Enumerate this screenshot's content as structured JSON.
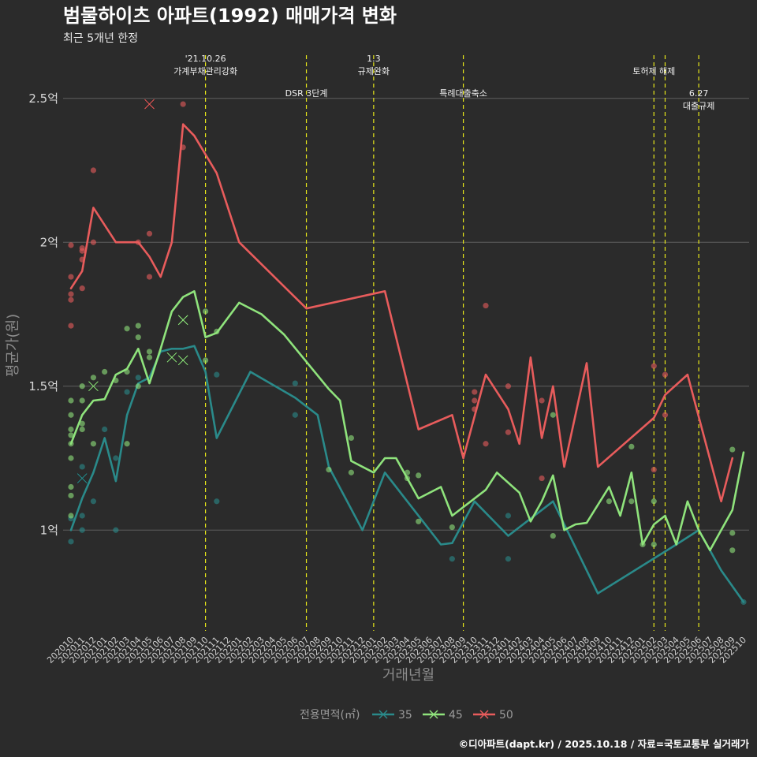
{
  "header": {
    "title": "범물하이츠 아파트(1992) 매매가격 변화",
    "subtitle": "최근 5개년 한정"
  },
  "caption": "©디아파트(dapt.kr) / 2025.10.18 / 자료=국토교통부 실거래가",
  "chart_data": {
    "type": "line",
    "title": "범물하이츠 아파트(1992) 매매가격 변화",
    "xlabel": "거래년월",
    "ylabel": "평균가(원)",
    "ylim": [
      0.65,
      2.65
    ],
    "yticks": [
      {
        "v": 1.0,
        "label": "1억"
      },
      {
        "v": 1.5,
        "label": "1.5억"
      },
      {
        "v": 2.0,
        "label": "2억"
      },
      {
        "v": 2.5,
        "label": "2.5억"
      }
    ],
    "grid": true,
    "x_categories": [
      "202010",
      "202011",
      "202012",
      "202101",
      "202102",
      "202103",
      "202104",
      "202105",
      "202106",
      "202107",
      "202108",
      "202109",
      "202110",
      "202111",
      "202112",
      "202201",
      "202202",
      "202203",
      "202204",
      "202205",
      "202206",
      "202207",
      "202208",
      "202209",
      "202210",
      "202211",
      "202212",
      "202301",
      "202302",
      "202303",
      "202304",
      "202305",
      "202306",
      "202307",
      "202308",
      "202309",
      "202310",
      "202311",
      "202312",
      "202401",
      "202402",
      "202403",
      "202404",
      "202405",
      "202406",
      "202407",
      "202408",
      "202409",
      "202410",
      "202411",
      "202412",
      "202501",
      "202502",
      "202503",
      "202504",
      "202505",
      "202506",
      "202507",
      "202508",
      "202509",
      "202510"
    ],
    "legend": {
      "title": "전용면적(㎡)",
      "position": "bottom"
    },
    "series": [
      {
        "name": "35",
        "color": "#2a8a8a",
        "line": [
          [
            "202010",
            1.0
          ],
          [
            "202011",
            1.11
          ],
          [
            "202012",
            1.2
          ],
          [
            "202101",
            1.32
          ],
          [
            "202102",
            1.17
          ],
          [
            "202103",
            1.4
          ],
          [
            "202104",
            1.51
          ],
          [
            "202105",
            1.53
          ],
          [
            "202106",
            1.62
          ],
          [
            "202107",
            1.63
          ],
          [
            "202108",
            1.63
          ],
          [
            "202109",
            1.64
          ],
          [
            "202110",
            1.55
          ],
          [
            "202111",
            1.32
          ],
          [
            "202202",
            1.55
          ],
          [
            "202206",
            1.46
          ],
          [
            "202208",
            1.4
          ],
          [
            "202209",
            1.22
          ],
          [
            "202212",
            1.0
          ],
          [
            "202302",
            1.2
          ],
          [
            "202307",
            0.95
          ],
          [
            "202308",
            0.955
          ],
          [
            "202310",
            1.1
          ],
          [
            "202401",
            0.98
          ],
          [
            "202405",
            1.1
          ],
          [
            "202409",
            0.78
          ],
          [
            "202504",
            0.95
          ],
          [
            "202506",
            1.0
          ],
          [
            "202508",
            0.86
          ],
          [
            "202510",
            0.75
          ]
        ],
        "points": [
          [
            "202010",
            0.96
          ],
          [
            "202010",
            1.04
          ],
          [
            "202011",
            1.0
          ],
          [
            "202011",
            1.05
          ],
          [
            "202011",
            1.22
          ],
          [
            "202012",
            1.1
          ],
          [
            "202101",
            1.35
          ],
          [
            "202102",
            1.0
          ],
          [
            "202102",
            1.25
          ],
          [
            "202103",
            1.48
          ],
          [
            "202104",
            1.53
          ],
          [
            "202111",
            1.1
          ],
          [
            "202111",
            1.54
          ],
          [
            "202206",
            1.51
          ],
          [
            "202206",
            1.4
          ],
          [
            "202308",
            0.9
          ],
          [
            "202401",
            0.9
          ],
          [
            "202401",
            1.05
          ],
          [
            "202510",
            0.75
          ]
        ],
        "crosses": [
          [
            "202011",
            1.18
          ]
        ]
      },
      {
        "name": "45",
        "color": "#8fe37c",
        "line": [
          [
            "202010",
            1.3
          ],
          [
            "202011",
            1.4
          ],
          [
            "202012",
            1.45
          ],
          [
            "202101",
            1.455
          ],
          [
            "202102",
            1.54
          ],
          [
            "202103",
            1.56
          ],
          [
            "202104",
            1.63
          ],
          [
            "202105",
            1.51
          ],
          [
            "202106",
            1.63
          ],
          [
            "202107",
            1.76
          ],
          [
            "202108",
            1.81
          ],
          [
            "202109",
            1.83
          ],
          [
            "202110",
            1.67
          ],
          [
            "202111",
            1.685
          ],
          [
            "202201",
            1.79
          ],
          [
            "202203",
            1.75
          ],
          [
            "202205",
            1.68
          ],
          [
            "202209",
            1.49
          ],
          [
            "202210",
            1.45
          ],
          [
            "202211",
            1.24
          ],
          [
            "202301",
            1.2
          ],
          [
            "202302",
            1.25
          ],
          [
            "202303",
            1.25
          ],
          [
            "202305",
            1.11
          ],
          [
            "202307",
            1.15
          ],
          [
            "202308",
            1.05
          ],
          [
            "202311",
            1.14
          ],
          [
            "202312",
            1.2
          ],
          [
            "202402",
            1.13
          ],
          [
            "202403",
            1.03
          ],
          [
            "202404",
            1.1
          ],
          [
            "202405",
            1.19
          ],
          [
            "202406",
            1.0
          ],
          [
            "202407",
            1.02
          ],
          [
            "202408",
            1.025
          ],
          [
            "202410",
            1.15
          ],
          [
            "202411",
            1.05
          ],
          [
            "202412",
            1.2
          ],
          [
            "202501",
            0.95
          ],
          [
            "202502",
            1.02
          ],
          [
            "202503",
            1.05
          ],
          [
            "202504",
            0.95
          ],
          [
            "202505",
            1.1
          ],
          [
            "202506",
            1.0
          ],
          [
            "202507",
            0.93
          ],
          [
            "202509",
            1.07
          ],
          [
            "202510",
            1.27
          ]
        ],
        "points": [
          [
            "202010",
            1.3
          ],
          [
            "202010",
            1.33
          ],
          [
            "202010",
            1.35
          ],
          [
            "202010",
            1.4
          ],
          [
            "202010",
            1.45
          ],
          [
            "202010",
            1.25
          ],
          [
            "202010",
            1.15
          ],
          [
            "202010",
            1.12
          ],
          [
            "202010",
            1.05
          ],
          [
            "202011",
            1.35
          ],
          [
            "202011",
            1.37
          ],
          [
            "202011",
            1.45
          ],
          [
            "202011",
            1.5
          ],
          [
            "202012",
            1.53
          ],
          [
            "202012",
            1.3
          ],
          [
            "202101",
            1.55
          ],
          [
            "202102",
            1.52
          ],
          [
            "202103",
            1.7
          ],
          [
            "202103",
            1.55
          ],
          [
            "202103",
            1.3
          ],
          [
            "202104",
            1.71
          ],
          [
            "202104",
            1.67
          ],
          [
            "202104",
            1.5
          ],
          [
            "202105",
            1.62
          ],
          [
            "202105",
            1.6
          ],
          [
            "202110",
            1.76
          ],
          [
            "202110",
            1.59
          ],
          [
            "202111",
            1.69
          ],
          [
            "202209",
            1.21
          ],
          [
            "202211",
            1.32
          ],
          [
            "202211",
            1.2
          ],
          [
            "202304",
            1.2
          ],
          [
            "202304",
            1.18
          ],
          [
            "202305",
            1.19
          ],
          [
            "202305",
            1.03
          ],
          [
            "202308",
            1.01
          ],
          [
            "202405",
            1.4
          ],
          [
            "202405",
            0.98
          ],
          [
            "202410",
            1.1
          ],
          [
            "202412",
            1.29
          ],
          [
            "202412",
            1.1
          ],
          [
            "202501",
            0.95
          ],
          [
            "202502",
            1.1
          ],
          [
            "202502",
            0.95
          ],
          [
            "202509",
            1.28
          ],
          [
            "202509",
            0.99
          ],
          [
            "202509",
            0.93
          ]
        ],
        "crosses": [
          [
            "202012",
            1.5
          ],
          [
            "202108",
            1.73
          ],
          [
            "202108",
            1.59
          ],
          [
            "202107",
            1.6
          ]
        ]
      },
      {
        "name": "50",
        "color": "#e85c5c",
        "line": [
          [
            "202010",
            1.84
          ],
          [
            "202011",
            1.9
          ],
          [
            "202012",
            2.12
          ],
          [
            "202102",
            2.0
          ],
          [
            "202104",
            2.0
          ],
          [
            "202105",
            1.95
          ],
          [
            "202106",
            1.88
          ],
          [
            "202107",
            2.0
          ],
          [
            "202108",
            2.41
          ],
          [
            "202109",
            2.37
          ],
          [
            "202111",
            2.24
          ],
          [
            "202201",
            2.0
          ],
          [
            "202207",
            1.77
          ],
          [
            "202302",
            1.83
          ],
          [
            "202305",
            1.35
          ],
          [
            "202308",
            1.4
          ],
          [
            "202309",
            1.25
          ],
          [
            "202311",
            1.54
          ],
          [
            "202401",
            1.42
          ],
          [
            "202402",
            1.3
          ],
          [
            "202403",
            1.6
          ],
          [
            "202404",
            1.32
          ],
          [
            "202405",
            1.5
          ],
          [
            "202406",
            1.22
          ],
          [
            "202408",
            1.58
          ],
          [
            "202409",
            1.22
          ],
          [
            "202502",
            1.39
          ],
          [
            "202503",
            1.47
          ],
          [
            "202505",
            1.54
          ],
          [
            "202508",
            1.1
          ],
          [
            "202509",
            1.25
          ]
        ],
        "points": [
          [
            "202010",
            1.99
          ],
          [
            "202010",
            1.88
          ],
          [
            "202010",
            1.82
          ],
          [
            "202010",
            1.8
          ],
          [
            "202010",
            1.71
          ],
          [
            "202011",
            1.98
          ],
          [
            "202011",
            1.97
          ],
          [
            "202011",
            1.94
          ],
          [
            "202011",
            1.84
          ],
          [
            "202012",
            2.25
          ],
          [
            "202012",
            2.0
          ],
          [
            "202104",
            2.0
          ],
          [
            "202105",
            2.03
          ],
          [
            "202105",
            1.88
          ],
          [
            "202108",
            2.48
          ],
          [
            "202108",
            2.33
          ],
          [
            "202310",
            1.48
          ],
          [
            "202310",
            1.45
          ],
          [
            "202310",
            1.42
          ],
          [
            "202311",
            1.78
          ],
          [
            "202311",
            1.3
          ],
          [
            "202401",
            1.5
          ],
          [
            "202401",
            1.34
          ],
          [
            "202404",
            1.45
          ],
          [
            "202404",
            1.18
          ],
          [
            "202502",
            1.57
          ],
          [
            "202502",
            1.21
          ],
          [
            "202503",
            1.54
          ],
          [
            "202503",
            1.4
          ]
        ],
        "crosses": [
          [
            "202105",
            2.48
          ]
        ]
      }
    ],
    "events": [
      {
        "at": "202110",
        "lines": [
          "'21.10.26",
          "가계부채관리강화"
        ],
        "row": 0
      },
      {
        "at": "202207",
        "lines": [
          "DSR 3단계"
        ],
        "row": 1
      },
      {
        "at": "202301",
        "lines": [
          "1.3",
          "규제완화"
        ],
        "row": 0
      },
      {
        "at": "202309",
        "lines": [
          "특례대출축소"
        ],
        "row": 1
      },
      {
        "at": "202502",
        "lines": [],
        "row": 0
      },
      {
        "at": "202503",
        "lines": [
          "토허제 해제"
        ],
        "row": 0,
        "shift": -1
      },
      {
        "at": "202506",
        "lines": [
          "6.27",
          "대출규제"
        ],
        "row": 1
      }
    ]
  }
}
